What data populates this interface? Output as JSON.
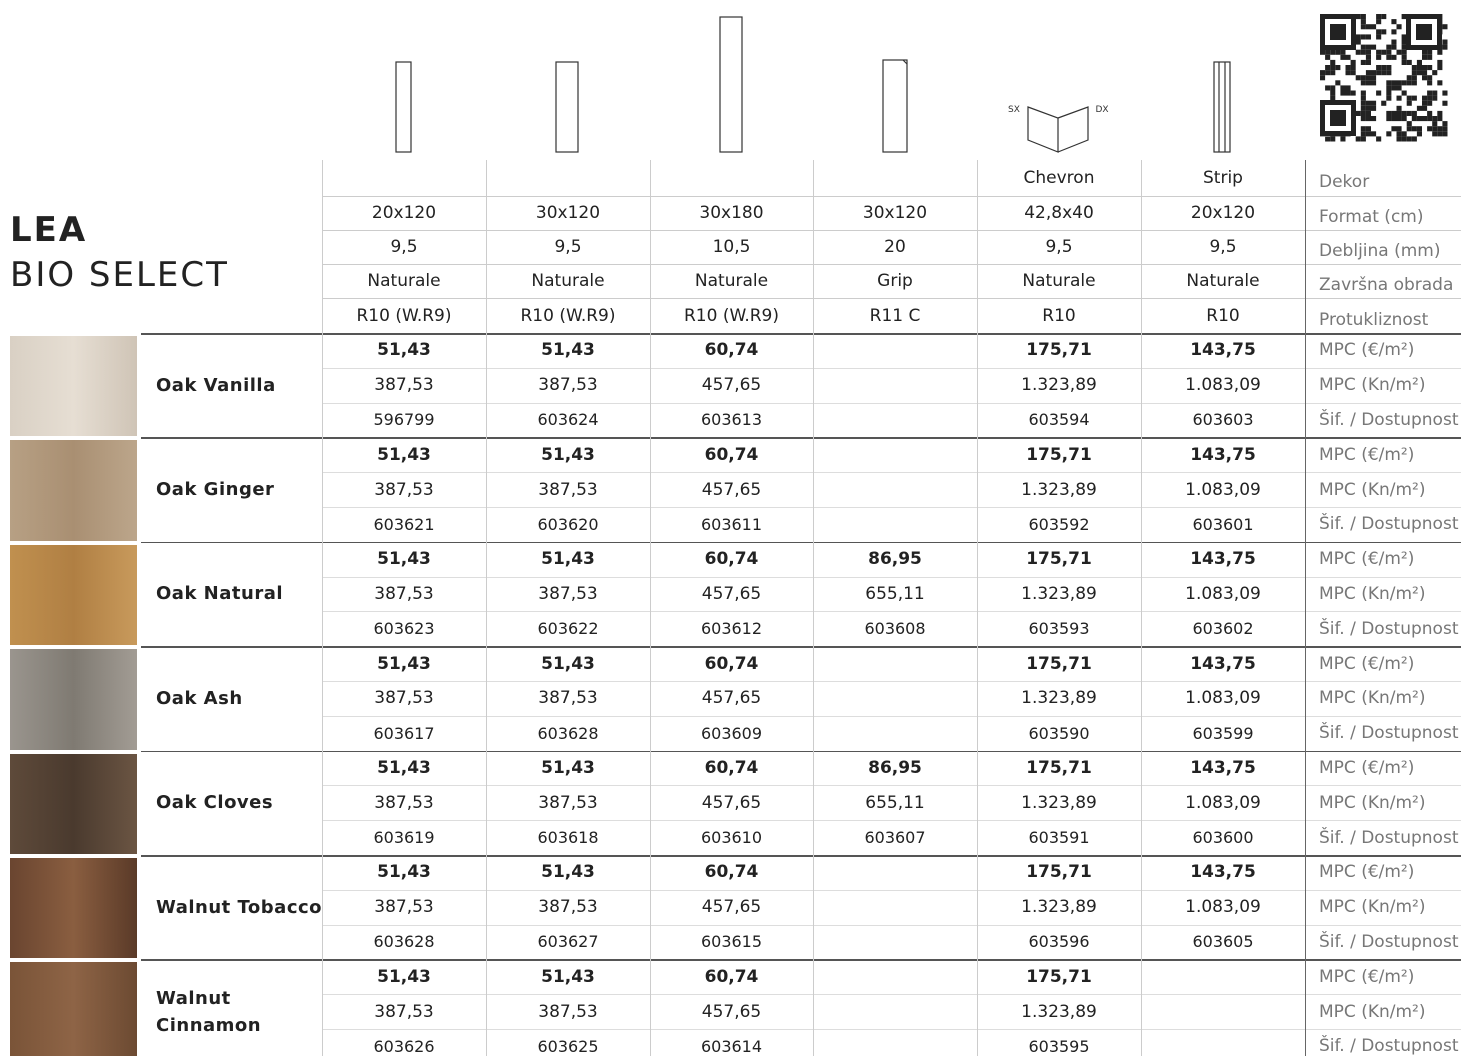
{
  "header": {
    "title": "LEA",
    "subtitle": "BIO SELECT"
  },
  "spec_labels": [
    "Dekor",
    "Format (cm)",
    "Debljina (mm)",
    "Završna obrada",
    "Protukliznost"
  ],
  "columns": [
    {
      "dekor": null,
      "format": "20x120",
      "thickness": "9,5",
      "finish": "Naturale",
      "slip": "R10 (W.R9)"
    },
    {
      "dekor": null,
      "format": "30x120",
      "thickness": "9,5",
      "finish": "Naturale",
      "slip": "R10 (W.R9)"
    },
    {
      "dekor": null,
      "format": "30x180",
      "thickness": "10,5",
      "finish": "Naturale",
      "slip": "R10 (W.R9)"
    },
    {
      "dekor": null,
      "format": "30x120",
      "thickness": "20",
      "finish": "Grip",
      "slip": "R11 C"
    },
    {
      "dekor": "Chevron",
      "format": "42,8x40",
      "thickness": "9,5",
      "finish": "Naturale",
      "slip": "R10"
    },
    {
      "dekor": "Strip",
      "format": "20x120",
      "thickness": "9,5",
      "finish": "Naturale",
      "slip": "R10"
    }
  ],
  "icon_labels": {
    "left": "SX",
    "right": "DX"
  },
  "row_labels": [
    "MPC (€/m²)",
    "MPC (Kn/m²)",
    "Šif. / Dostupnost"
  ],
  "products": [
    {
      "name": "Oak Vanilla",
      "eur": [
        "51,43",
        "51,43",
        "60,74",
        null,
        "175,71",
        "143,75"
      ],
      "kn": [
        "387,53",
        "387,53",
        "457,65",
        null,
        "1.323,89",
        "1.083,09"
      ],
      "code": [
        "596799",
        "603624",
        "603613",
        null,
        "603594",
        "603603"
      ]
    },
    {
      "name": "Oak Ginger",
      "eur": [
        "51,43",
        "51,43",
        "60,74",
        null,
        "175,71",
        "143,75"
      ],
      "kn": [
        "387,53",
        "387,53",
        "457,65",
        null,
        "1.323,89",
        "1.083,09"
      ],
      "code": [
        "603621",
        "603620",
        "603611",
        null,
        "603592",
        "603601"
      ]
    },
    {
      "name": "Oak Natural",
      "eur": [
        "51,43",
        "51,43",
        "60,74",
        "86,95",
        "175,71",
        "143,75"
      ],
      "kn": [
        "387,53",
        "387,53",
        "457,65",
        "655,11",
        "1.323,89",
        "1.083,09"
      ],
      "code": [
        "603623",
        "603622",
        "603612",
        "603608",
        "603593",
        "603602"
      ]
    },
    {
      "name": "Oak Ash",
      "eur": [
        "51,43",
        "51,43",
        "60,74",
        null,
        "175,71",
        "143,75"
      ],
      "kn": [
        "387,53",
        "387,53",
        "457,65",
        null,
        "1.323,89",
        "1.083,09"
      ],
      "code": [
        "603617",
        "603628",
        "603609",
        null,
        "603590",
        "603599"
      ]
    },
    {
      "name": "Oak Cloves",
      "eur": [
        "51,43",
        "51,43",
        "60,74",
        "86,95",
        "175,71",
        "143,75"
      ],
      "kn": [
        "387,53",
        "387,53",
        "457,65",
        "655,11",
        "1.323,89",
        "1.083,09"
      ],
      "code": [
        "603619",
        "603618",
        "603610",
        "603607",
        "603591",
        "603600"
      ]
    },
    {
      "name": "Walnut Tobacco",
      "eur": [
        "51,43",
        "51,43",
        "60,74",
        null,
        "175,71",
        "143,75"
      ],
      "kn": [
        "387,53",
        "387,53",
        "457,65",
        null,
        "1.323,89",
        "1.083,09"
      ],
      "code": [
        "603628",
        "603627",
        "603615",
        null,
        "603596",
        "603605"
      ]
    },
    {
      "name": "Walnut Cinnamon",
      "eur": [
        "51,43",
        "51,43",
        "60,74",
        null,
        "175,71",
        null
      ],
      "kn": [
        "387,53",
        "387,53",
        "457,65",
        null,
        "1.323,89",
        null
      ],
      "code": [
        "603626",
        "603625",
        "603614",
        null,
        "603595",
        null
      ]
    }
  ]
}
